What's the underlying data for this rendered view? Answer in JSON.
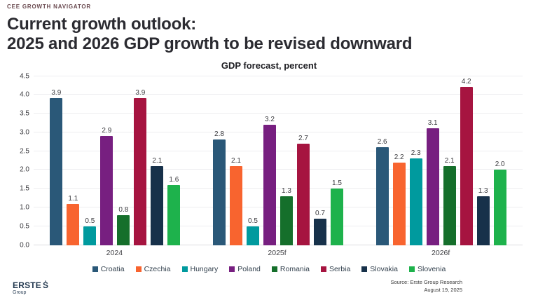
{
  "header": {
    "eyebrow": "CEE GROWTH NAVIGATOR",
    "title_line1": "Current growth outlook:",
    "title_line2": "2025 and 2026 GDP growth to be revised downward"
  },
  "chart_data": {
    "type": "bar",
    "title": "GDP forecast, percent",
    "categories": [
      "2024",
      "2025f",
      "2026f"
    ],
    "series": [
      {
        "name": "Croatia",
        "color": "#2a5878",
        "values": [
          3.9,
          2.8,
          2.6
        ]
      },
      {
        "name": "Czechia",
        "color": "#f8642f",
        "values": [
          1.1,
          2.1,
          2.2
        ]
      },
      {
        "name": "Hungary",
        "color": "#009a9e",
        "values": [
          0.5,
          0.5,
          2.3
        ]
      },
      {
        "name": "Poland",
        "color": "#771f80",
        "values": [
          2.9,
          3.2,
          3.1
        ]
      },
      {
        "name": "Romania",
        "color": "#156f2b",
        "values": [
          0.8,
          1.3,
          2.1
        ]
      },
      {
        "name": "Serbia",
        "color": "#a61440",
        "values": [
          3.9,
          2.7,
          4.2
        ]
      },
      {
        "name": "Slovakia",
        "color": "#17314a",
        "values": [
          2.1,
          0.7,
          1.3
        ]
      },
      {
        "name": "Slovenia",
        "color": "#1eb24c",
        "values": [
          1.6,
          1.5,
          2.0
        ]
      }
    ],
    "ylim": [
      0,
      4.5
    ],
    "ytick_step": 0.5,
    "grid": true,
    "legend_position": "bottom",
    "value_labels": true
  },
  "footer": {
    "logo_text": "ERSTE",
    "logo_symbol": "Ṡ",
    "logo_subtext": "Group",
    "source_line1": "Source: Erste Group Research",
    "source_line2": "August 19, 2025"
  }
}
